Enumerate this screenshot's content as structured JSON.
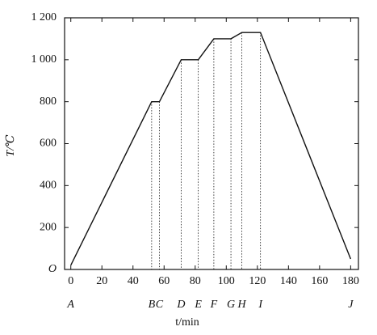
{
  "chart_data": {
    "type": "line",
    "x_label": "t/min",
    "y_label": "T/℃",
    "x": [
      0,
      52,
      57,
      71,
      82,
      92,
      103,
      110,
      122,
      180
    ],
    "values": [
      20,
      800,
      800,
      1000,
      1000,
      1100,
      1100,
      1130,
      1130,
      50
    ],
    "point_labels": [
      "A",
      "B",
      "C",
      "D",
      "E",
      "F",
      "G",
      "H",
      "I",
      "J"
    ],
    "color": "#111111",
    "droplines": true,
    "xlim": [
      -4,
      185
    ],
    "ylim": [
      0,
      1200
    ],
    "xticks": [
      0,
      20,
      40,
      60,
      80,
      100,
      120,
      140,
      160,
      180
    ],
    "yticks": [
      {
        "value": 0,
        "label": "O"
      },
      200,
      400,
      600,
      800,
      {
        "value": 1000,
        "label": "1 000"
      },
      {
        "value": 1200,
        "label": "1 200"
      }
    ]
  }
}
